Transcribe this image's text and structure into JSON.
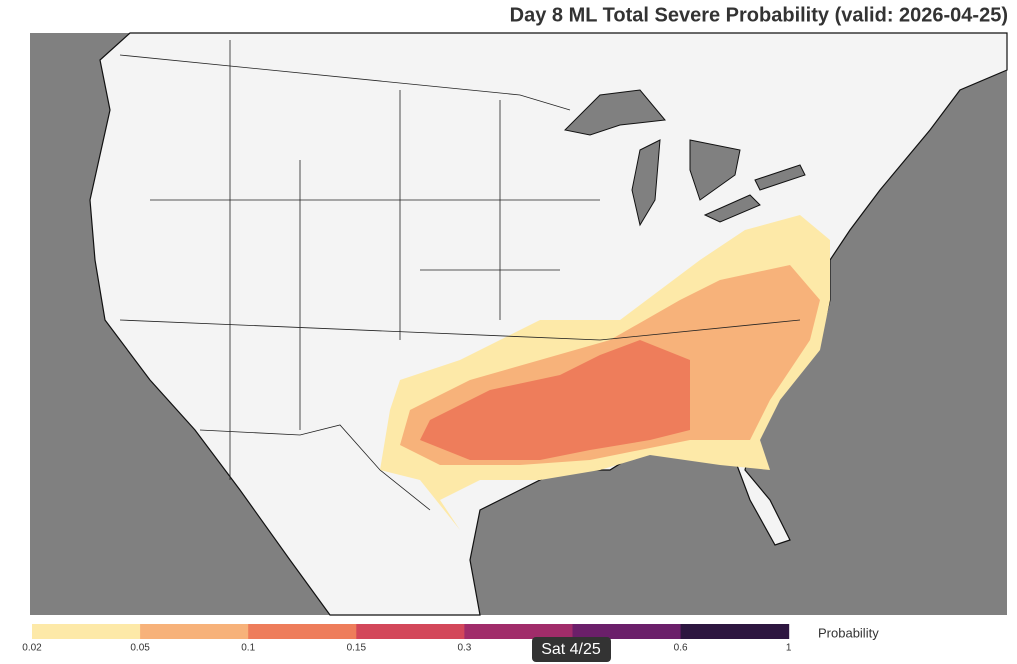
{
  "header": {
    "title": "Day 8 ML Total Severe Probability (valid: 2026-04-25)"
  },
  "colorbar": {
    "label": "Probability",
    "ticks": [
      "0.02",
      "0.05",
      "0.1",
      "0.15",
      "0.3",
      "0.6",
      "1"
    ],
    "colors": [
      "#fde9a8",
      "#f7b27a",
      "#ee7d5b",
      "#d3475a",
      "#a12c6a",
      "#6b1f6a",
      "#2d1640"
    ]
  },
  "badge": {
    "text": "Sat 4/25"
  }
}
